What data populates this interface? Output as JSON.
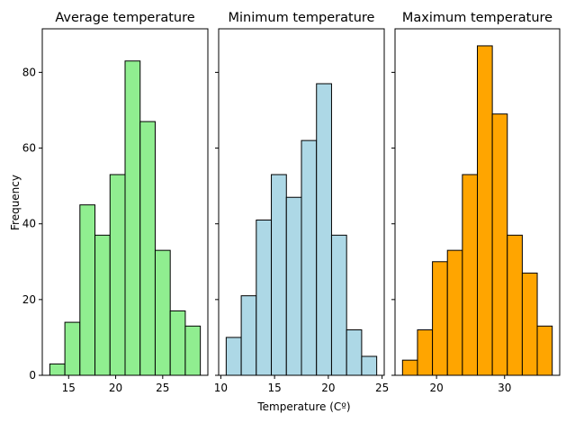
{
  "chart_data": {
    "type": "histogram",
    "shared_y": true,
    "ylabel": "Frequency",
    "xlabel": "Temperature (Cº)",
    "ylim": [
      0,
      91.5
    ],
    "yticks": [
      0,
      20,
      40,
      60,
      80
    ],
    "grid": false,
    "panels": [
      {
        "title": "Average temperature",
        "color": "#90ee90",
        "edge_color": "#000000",
        "bin_edges": [
          13.0,
          14.6,
          16.2,
          17.8,
          19.4,
          21.0,
          22.6,
          24.2,
          25.8,
          27.4,
          29.0
        ],
        "counts": [
          3,
          14,
          45,
          37,
          53,
          83,
          67,
          33,
          17,
          13
        ],
        "xlim": [
          12.2,
          29.8
        ],
        "xticks": [
          15,
          20,
          25
        ]
      },
      {
        "title": "Minimum temperature",
        "color": "#add8e6",
        "edge_color": "#000000",
        "bin_edges": [
          10.5,
          11.9,
          13.3,
          14.7,
          16.1,
          17.5,
          18.9,
          20.3,
          21.7,
          23.1,
          24.5
        ],
        "counts": [
          10,
          21,
          41,
          53,
          47,
          62,
          77,
          37,
          12,
          5
        ],
        "xlim": [
          9.8,
          25.2
        ],
        "xticks": [
          10,
          15,
          20,
          25
        ]
      },
      {
        "title": "Maximum temperature",
        "color": "#ffa500",
        "edge_color": "#000000",
        "bin_edges": [
          15.0,
          17.2,
          19.4,
          21.6,
          23.8,
          26.0,
          28.2,
          30.4,
          32.6,
          34.8,
          37.0
        ],
        "counts": [
          4,
          12,
          30,
          33,
          53,
          87,
          69,
          37,
          27,
          13
        ],
        "xlim": [
          13.9,
          38.1
        ],
        "xticks": [
          20,
          30
        ]
      }
    ]
  }
}
